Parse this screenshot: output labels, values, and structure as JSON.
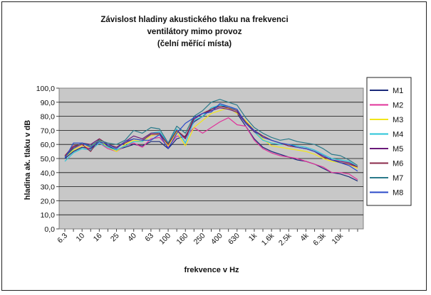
{
  "chart_data": {
    "type": "line",
    "title_lines": [
      "Závislost hladiny akustického tlaku na frekvenci",
      "ventilátory mimo provoz",
      "(čelní měřící místa)"
    ],
    "xlabel": "frekvence v Hz",
    "ylabel": "hladina ak. tlaku v dB",
    "ylim": [
      0,
      100
    ],
    "yticks": [
      "0,0",
      "10,0",
      "20,0",
      "30,0",
      "40,0",
      "50,0",
      "60,0",
      "70,0",
      "80,0",
      "90,0",
      "100,0"
    ],
    "x": [
      "6.3",
      "8",
      "10",
      "12.5",
      "16",
      "20",
      "25",
      "31.5",
      "40",
      "50",
      "63",
      "80",
      "100",
      "125",
      "160",
      "200",
      "250",
      "315",
      "400",
      "500",
      "630",
      "800",
      "1k",
      "1.25k",
      "1.6k",
      "2k",
      "2.5k",
      "3.15k",
      "4k",
      "5k",
      "6.3k",
      "8k",
      "10k",
      "12.5k",
      "16k"
    ],
    "xtick_labels": [
      "6.3",
      "",
      "10",
      "",
      "16",
      "",
      "25",
      "",
      "40",
      "",
      "63",
      "",
      "100",
      "",
      "160",
      "",
      "250",
      "",
      "400",
      "",
      "630",
      "",
      "1k",
      "",
      "1.6k",
      "",
      "2.5k",
      "",
      "4k",
      "",
      "6.3k",
      "",
      "10k",
      "",
      ""
    ],
    "grid": true,
    "legend_position": "right",
    "series": [
      {
        "name": "M1",
        "color": "#1a2a7a",
        "values": [
          50,
          55,
          58,
          57,
          62,
          59,
          56,
          58,
          60,
          59,
          62,
          62,
          57,
          64,
          66,
          76,
          80,
          85,
          88,
          86,
          82,
          73,
          64,
          58,
          55,
          53,
          51,
          49,
          48,
          46,
          43,
          40,
          39,
          37,
          34
        ]
      },
      {
        "name": "M2",
        "color": "#e0329a",
        "values": [
          52,
          57,
          60,
          56,
          61,
          57,
          55,
          59,
          61,
          58,
          64,
          65,
          58,
          66,
          65,
          72,
          68,
          72,
          76,
          79,
          74,
          73,
          63,
          57,
          54,
          52,
          51,
          50,
          48,
          46,
          44,
          40,
          40,
          39,
          35
        ]
      },
      {
        "name": "M3",
        "color": "#f2e61a",
        "values": [
          51,
          56,
          59,
          58,
          63,
          58,
          55,
          60,
          63,
          62,
          66,
          68,
          59,
          69,
          59,
          72,
          77,
          82,
          84,
          86,
          82,
          77,
          70,
          64,
          59,
          58,
          57,
          56,
          55,
          53,
          50,
          48,
          47,
          46,
          43
        ]
      },
      {
        "name": "M4",
        "color": "#28c4d8",
        "values": [
          48,
          54,
          57,
          56,
          61,
          58,
          56,
          59,
          62,
          62,
          68,
          69,
          61,
          71,
          61,
          77,
          80,
          86,
          88,
          87,
          84,
          75,
          69,
          63,
          61,
          60,
          60,
          59,
          58,
          56,
          53,
          50,
          49,
          48,
          44
        ]
      },
      {
        "name": "M5",
        "color": "#6a1a7a",
        "values": [
          51,
          58,
          61,
          60,
          64,
          60,
          58,
          62,
          66,
          64,
          68,
          68,
          60,
          70,
          64,
          78,
          82,
          84,
          86,
          85,
          83,
          75,
          69,
          66,
          63,
          61,
          59,
          58,
          57,
          55,
          52,
          49,
          48,
          47,
          44
        ]
      },
      {
        "name": "M6",
        "color": "#8a2a4a",
        "values": [
          52,
          59,
          60,
          55,
          64,
          60,
          58,
          61,
          64,
          63,
          67,
          67,
          60,
          70,
          65,
          79,
          82,
          85,
          87,
          86,
          84,
          76,
          70,
          66,
          63,
          61,
          59,
          58,
          57,
          55,
          51,
          49,
          47,
          46,
          44
        ]
      },
      {
        "name": "M7",
        "color": "#2a7a8a",
        "values": [
          51,
          57,
          61,
          59,
          63,
          61,
          60,
          63,
          70,
          68,
          72,
          71,
          61,
          73,
          68,
          80,
          84,
          90,
          92,
          90,
          88,
          79,
          72,
          68,
          65,
          63,
          64,
          62,
          61,
          60,
          57,
          53,
          52,
          49,
          45
        ]
      },
      {
        "name": "M8",
        "color": "#2a4ac8",
        "values": [
          50,
          61,
          61,
          58,
          62,
          60,
          57,
          62,
          64,
          63,
          63,
          67,
          57,
          68,
          75,
          79,
          82,
          83,
          89,
          87,
          85,
          75,
          70,
          65,
          63,
          61,
          60,
          58,
          57,
          55,
          52,
          49,
          47,
          45,
          41
        ]
      }
    ]
  }
}
